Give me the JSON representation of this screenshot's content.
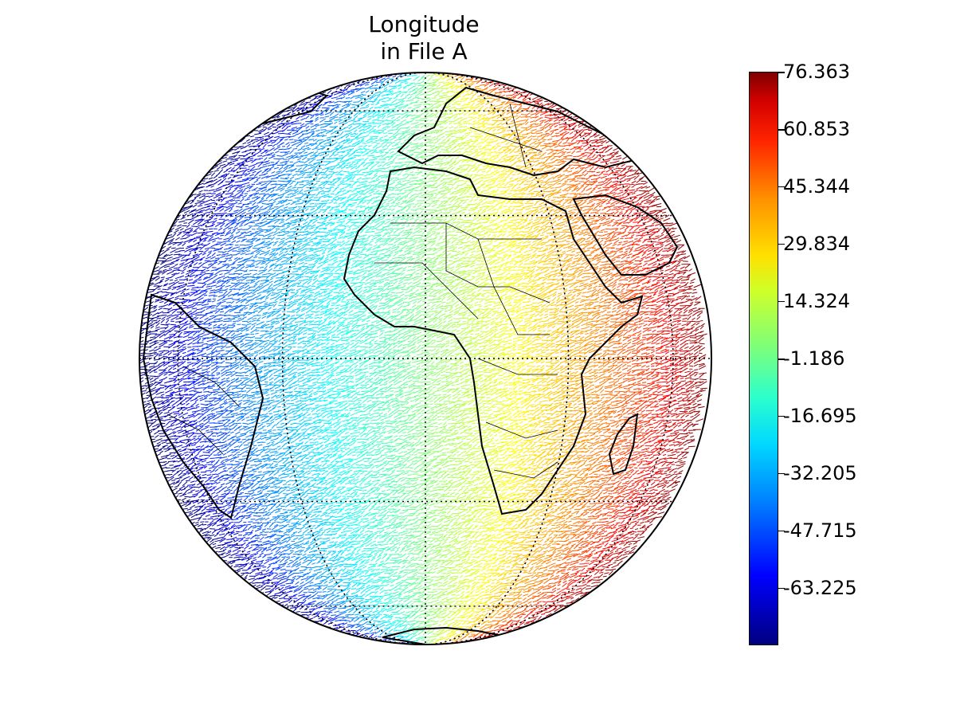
{
  "title": {
    "line1": "Longitude",
    "line2": "in File A"
  },
  "colorbar": {
    "colormap": "jet",
    "min": -78.735,
    "max": 76.363,
    "ticks": [
      "76.363",
      "60.853",
      "45.344",
      "29.834",
      "14.324",
      "-1.186",
      "-16.695",
      "-32.205",
      "-47.715",
      "-63.225"
    ],
    "tick_values": [
      76.363,
      60.853,
      45.344,
      29.834,
      14.324,
      -1.186,
      -16.695,
      -32.205,
      -47.715,
      -63.225
    ]
  },
  "map": {
    "projection": "orthographic",
    "center_lon": 0,
    "center_lat": 0,
    "gridlines": "dotted",
    "coastlines": true,
    "country_borders": true
  }
}
